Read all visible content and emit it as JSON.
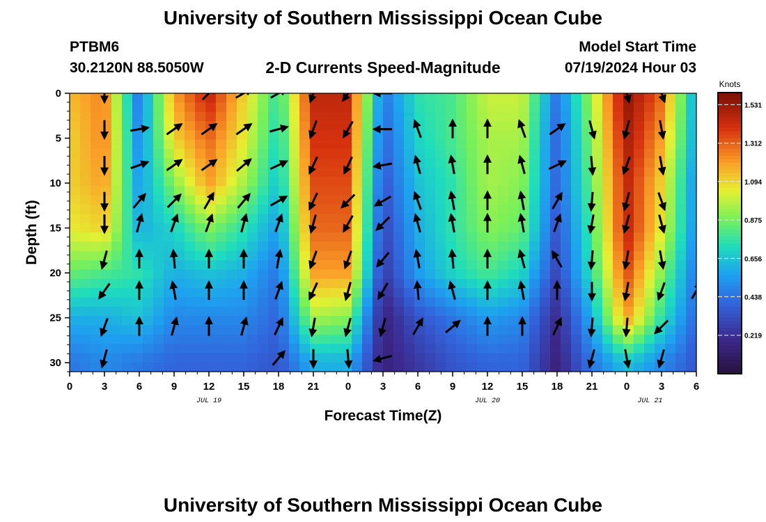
{
  "page": {
    "title_top": "University of Southern Mississippi Ocean Cube",
    "title_bottom": "University of Southern Mississippi Ocean Cube",
    "station": "PTBM6",
    "coords": "30.2120N  88.5050W",
    "subtitle": "2-D Currents Speed-Magnitude",
    "model_start_label": "Model Start Time",
    "model_start_value": "07/19/2024 Hour 03"
  },
  "chart_data": {
    "type": "heatmap",
    "title": "2-D Currents Speed-Magnitude",
    "xlabel": "Forecast Time(Z)",
    "ylabel": "Depth (ft)",
    "x_unit": "hours since 00Z Jul 19",
    "xlim": [
      0,
      54
    ],
    "ylim": [
      0,
      31
    ],
    "y_inverted": true,
    "x_tick_values": [
      0,
      3,
      6,
      9,
      12,
      15,
      18,
      21,
      24,
      27,
      30,
      33,
      36,
      39,
      42,
      45,
      48,
      51,
      54
    ],
    "x_tick_labels": [
      "0",
      "3",
      "6",
      "9",
      "12",
      "15",
      "18",
      "21",
      "0",
      "3",
      "6",
      "9",
      "12",
      "15",
      "18",
      "21",
      "0",
      "3",
      "6"
    ],
    "y_ticks": [
      0,
      5,
      10,
      15,
      20,
      25,
      30
    ],
    "date_labels": [
      {
        "label": "JUL 19",
        "x": 12
      },
      {
        "label": "JUL 20",
        "x": 36
      },
      {
        "label": "JUL 21",
        "x": 50
      }
    ],
    "colorbar": {
      "unit": "Knots",
      "min": 0.0,
      "max": 1.6,
      "ticks": [
        1.531,
        1.312,
        1.094,
        0.875,
        0.656,
        0.438,
        0.219
      ],
      "labels": [
        "1.531",
        "1.312",
        "1.094",
        "0.875",
        "0.656",
        "0.438",
        "0.219"
      ]
    },
    "speed_grid": {
      "x": [
        0,
        3,
        6,
        9,
        12,
        15,
        18,
        21,
        24,
        27,
        30,
        33,
        36,
        39,
        42,
        45,
        48,
        51,
        54
      ],
      "depth": [
        0,
        5,
        10,
        15,
        20,
        25,
        30
      ],
      "values": [
        [
          1.15,
          1.25,
          0.45,
          1.2,
          1.45,
          1.1,
          0.75,
          1.45,
          1.45,
          0.45,
          0.75,
          0.8,
          1.0,
          1.0,
          0.45,
          0.95,
          1.55,
          1.3,
          0.55
        ],
        [
          1.1,
          1.25,
          0.5,
          1.1,
          1.3,
          1.05,
          0.7,
          1.4,
          1.4,
          0.4,
          0.7,
          0.8,
          0.95,
          0.95,
          0.4,
          0.9,
          1.5,
          1.2,
          0.55
        ],
        [
          1.1,
          1.2,
          0.55,
          0.9,
          1.2,
          0.95,
          0.65,
          1.35,
          1.35,
          0.35,
          0.65,
          0.75,
          0.95,
          0.9,
          0.4,
          0.85,
          1.45,
          1.1,
          0.5
        ],
        [
          1.05,
          1.1,
          0.6,
          0.7,
          0.9,
          0.75,
          0.55,
          1.3,
          1.3,
          0.3,
          0.6,
          0.75,
          0.9,
          0.85,
          0.35,
          0.8,
          1.45,
          1.05,
          0.5
        ],
        [
          0.85,
          0.8,
          0.75,
          0.6,
          0.65,
          0.6,
          0.45,
          1.2,
          1.2,
          0.25,
          0.55,
          0.7,
          0.8,
          0.7,
          0.3,
          0.75,
          1.35,
          0.9,
          0.45
        ],
        [
          0.6,
          0.6,
          0.65,
          0.5,
          0.5,
          0.5,
          0.4,
          0.95,
          0.9,
          0.15,
          0.35,
          0.45,
          0.55,
          0.5,
          0.2,
          0.6,
          1.2,
          0.75,
          0.4
        ],
        [
          0.45,
          0.5,
          0.45,
          0.4,
          0.4,
          0.4,
          0.35,
          0.6,
          0.6,
          0.15,
          0.25,
          0.35,
          0.4,
          0.4,
          0.15,
          0.45,
          0.65,
          0.5,
          0.35
        ]
      ]
    },
    "vectors": {
      "times": [
        3,
        6,
        9,
        12,
        15,
        18,
        21,
        24,
        27,
        30,
        33,
        36,
        39,
        42,
        45,
        48,
        51,
        54
      ],
      "depths": [
        0,
        4,
        8,
        12,
        14.5,
        18.5,
        22,
        26,
        29.5
      ],
      "angles_deg": [
        [
          180,
          null,
          null,
          45,
          60,
          60,
          200,
          215,
          270,
          null,
          null,
          null,
          null,
          null,
          null,
          165,
          160,
          null
        ],
        [
          180,
          80,
          55,
          55,
          55,
          75,
          200,
          210,
          270,
          340,
          0,
          0,
          340,
          55,
          165,
          195,
          170,
          null
        ],
        [
          180,
          70,
          55,
          55,
          50,
          65,
          205,
          205,
          260,
          345,
          350,
          0,
          345,
          65,
          175,
          200,
          170,
          null
        ],
        [
          180,
          40,
          45,
          30,
          40,
          60,
          205,
          225,
          240,
          340,
          350,
          0,
          350,
          30,
          185,
          195,
          160,
          null
        ],
        [
          180,
          15,
          20,
          20,
          15,
          20,
          195,
          210,
          225,
          345,
          350,
          0,
          350,
          20,
          190,
          195,
          165,
          null
        ],
        [
          195,
          0,
          355,
          0,
          0,
          10,
          200,
          200,
          220,
          350,
          355,
          0,
          345,
          330,
          185,
          190,
          170,
          null
        ],
        [
          215,
          0,
          350,
          0,
          0,
          20,
          205,
          195,
          210,
          355,
          345,
          0,
          350,
          0,
          180,
          190,
          200,
          30
        ],
        [
          200,
          0,
          15,
          0,
          15,
          25,
          190,
          195,
          195,
          30,
          50,
          0,
          0,
          25,
          185,
          185,
          225,
          null
        ],
        [
          195,
          null,
          null,
          null,
          null,
          40,
          180,
          175,
          255,
          null,
          null,
          null,
          null,
          null,
          195,
          170,
          195,
          null
        ]
      ]
    }
  }
}
